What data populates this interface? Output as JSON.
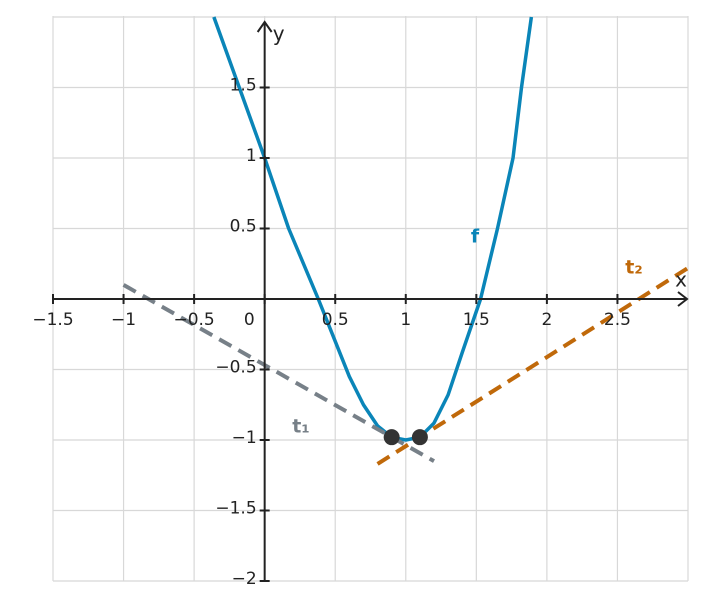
{
  "chart_data": {
    "type": "line",
    "x_label": "x",
    "y_label": "y",
    "xlim": [
      -1.5,
      3
    ],
    "ylim": [
      -2,
      2
    ],
    "grid": true,
    "xticks": [
      {
        "value": -1.5,
        "label": "−1.5"
      },
      {
        "value": -1,
        "label": "−1"
      },
      {
        "value": -0.5,
        "label": "−0.5"
      },
      0,
      0.5,
      1,
      1.5,
      2,
      2.5
    ],
    "yticks": [
      {
        "value": -2,
        "label": "−2"
      },
      {
        "value": -1.5,
        "label": "−1.5"
      },
      {
        "value": -1,
        "label": "−1"
      },
      {
        "value": -0.5,
        "label": "−0.5"
      },
      0.5,
      1,
      1.5
    ],
    "series": [
      {
        "name": "f",
        "color": "#0a85b8",
        "dashed": false,
        "x": [
          -0.36,
          -0.18,
          0,
          0.17,
          0.38,
          0.5,
          0.6,
          0.7,
          0.8,
          0.9,
          1.0,
          1.1,
          1.2,
          1.3,
          1.4,
          1.53,
          1.65,
          1.76,
          1.82,
          1.89
        ],
        "values": [
          2.0,
          1.5,
          1.0,
          0.5,
          0,
          -0.3,
          -0.55,
          -0.75,
          -0.9,
          -0.98,
          -1.0,
          -0.98,
          -0.88,
          -0.68,
          -0.38,
          0,
          0.5,
          1.0,
          1.5,
          2.0
        ]
      },
      {
        "name": "t₁",
        "color": "#778088",
        "dashed": true,
        "x": [
          -1,
          1.2
        ],
        "values": [
          0.1,
          -1.15
        ]
      },
      {
        "name": "t₂",
        "color": "#c0690a",
        "dashed": true,
        "x": [
          0.8,
          3
        ],
        "values": [
          -1.17,
          0.22
        ]
      }
    ],
    "points": {
      "color": "#333333",
      "x": [
        0.9,
        1.1
      ],
      "values": [
        -0.98,
        -0.98
      ]
    }
  }
}
